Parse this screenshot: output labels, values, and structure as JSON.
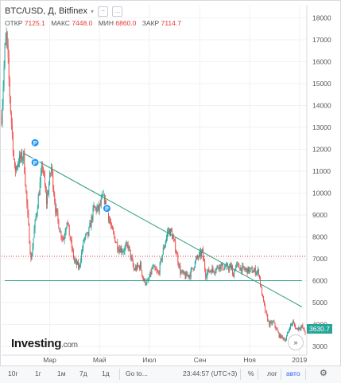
{
  "header": {
    "title": "BTC/USD, Д, Bitfinex"
  },
  "ohlc": [
    {
      "label": "ОТКР",
      "value": "7125.1"
    },
    {
      "label": "МАКС",
      "value": "7448.0"
    },
    {
      "label": "МИН",
      "value": "6860.0"
    },
    {
      "label": "ЗАКР",
      "value": "7114.7"
    }
  ],
  "logo": {
    "brand": "Investing",
    "suffix": ".com"
  },
  "price_label": "3630.7",
  "toolbar": {
    "periods": [
      "10г",
      "1г",
      "1м",
      "7д",
      "1д"
    ],
    "goto": "Go to...",
    "clock": "23:44:57 (UTC+3)",
    "percent": "%",
    "log": "лог",
    "auto": "авто"
  },
  "colors": {
    "up": "#26a69a",
    "down": "#ef5350",
    "trendline": "#2e9e83",
    "resistance": "#c62828",
    "badge": "#2196f3"
  },
  "chart_data": {
    "type": "candlestick",
    "symbol": "BTC/USD",
    "exchange": "Bitfinex",
    "interval": "Д",
    "y_axis": {
      "ticks": [
        3000,
        4000,
        5000,
        6000,
        7000,
        8000,
        9000,
        10000,
        11000,
        12000,
        13000,
        14000,
        15000,
        16000,
        17000,
        18000
      ],
      "ylim": [
        2600,
        18600
      ],
      "position": "right"
    },
    "x_axis": {
      "ticks": [
        "Мар",
        "Май",
        "Июл",
        "Сен",
        "Ноя",
        "2019"
      ],
      "tick_dates": [
        "2018-03-01",
        "2018-05-01",
        "2018-07-01",
        "2018-09-01",
        "2018-11-01",
        "2019-01-01"
      ],
      "xlim": [
        "2018-01-01",
        "2019-01-10"
      ]
    },
    "grid": true,
    "close_path": [
      [
        "2018-01-01",
        13500
      ],
      [
        "2018-01-05",
        16500
      ],
      [
        "2018-01-07",
        17200
      ],
      [
        "2018-01-12",
        13800
      ],
      [
        "2018-01-17",
        11000
      ],
      [
        "2018-01-22",
        11500
      ],
      [
        "2018-01-28",
        11700
      ],
      [
        "2018-02-02",
        8900
      ],
      [
        "2018-02-06",
        6900
      ],
      [
        "2018-02-10",
        8300
      ],
      [
        "2018-02-16",
        10100
      ],
      [
        "2018-02-20",
        11300
      ],
      [
        "2018-02-25",
        9600
      ],
      [
        "2018-03-03",
        11200
      ],
      [
        "2018-03-08",
        9300
      ],
      [
        "2018-03-14",
        8200
      ],
      [
        "2018-03-18",
        7900
      ],
      [
        "2018-03-22",
        8800
      ],
      [
        "2018-03-26",
        7900
      ],
      [
        "2018-03-31",
        6900
      ],
      [
        "2018-04-06",
        6600
      ],
      [
        "2018-04-12",
        7900
      ],
      [
        "2018-04-17",
        8100
      ],
      [
        "2018-04-24",
        9300
      ],
      [
        "2018-04-30",
        9250
      ],
      [
        "2018-05-05",
        9800
      ],
      [
        "2018-05-10",
        9300
      ],
      [
        "2018-05-16",
        8300
      ],
      [
        "2018-05-24",
        7500
      ],
      [
        "2018-05-30",
        7400
      ],
      [
        "2018-06-05",
        7600
      ],
      [
        "2018-06-12",
        6500
      ],
      [
        "2018-06-20",
        6700
      ],
      [
        "2018-06-24",
        6000
      ],
      [
        "2018-06-29",
        5900
      ],
      [
        "2018-07-05",
        6600
      ],
      [
        "2018-07-12",
        6300
      ],
      [
        "2018-07-18",
        7400
      ],
      [
        "2018-07-24",
        8300
      ],
      [
        "2018-07-28",
        8200
      ],
      [
        "2018-08-02",
        7500
      ],
      [
        "2018-08-08",
        6400
      ],
      [
        "2018-08-14",
        6200
      ],
      [
        "2018-08-20",
        6300
      ],
      [
        "2018-08-28",
        7000
      ],
      [
        "2018-09-04",
        7300
      ],
      [
        "2018-09-08",
        6300
      ],
      [
        "2018-09-14",
        6500
      ],
      [
        "2018-09-20",
        6500
      ],
      [
        "2018-09-24",
        6700
      ],
      [
        "2018-09-30",
        6600
      ],
      [
        "2018-10-10",
        6600
      ],
      [
        "2018-10-11",
        6200
      ],
      [
        "2018-10-15",
        6700
      ],
      [
        "2018-10-25",
        6500
      ],
      [
        "2018-11-05",
        6450
      ],
      [
        "2018-11-12",
        6400
      ],
      [
        "2018-11-15",
        5600
      ],
      [
        "2018-11-20",
        4600
      ],
      [
        "2018-11-25",
        4000
      ],
      [
        "2018-11-30",
        4100
      ],
      [
        "2018-12-07",
        3500
      ],
      [
        "2018-12-15",
        3300
      ],
      [
        "2018-12-20",
        3900
      ],
      [
        "2018-12-24",
        4100
      ],
      [
        "2018-12-28",
        3800
      ],
      [
        "2019-01-04",
        3900
      ],
      [
        "2019-01-08",
        3630
      ]
    ],
    "annotations": {
      "descending_trendline": [
        [
          "2018-01-29",
          11800
        ],
        [
          "2019-01-04",
          4800
        ]
      ],
      "support_line": {
        "value": 6000,
        "x": [
          "2018-01-05",
          "2019-01-04"
        ]
      },
      "resistance_dotted": {
        "value": 7114.7
      },
      "badges": [
        {
          "label": "P",
          "date": "2018-02-11",
          "price": 12300
        },
        {
          "label": "P",
          "date": "2018-02-11",
          "price": 11400
        },
        {
          "label": "P",
          "date": "2018-05-10",
          "price": 9300
        }
      ]
    }
  }
}
